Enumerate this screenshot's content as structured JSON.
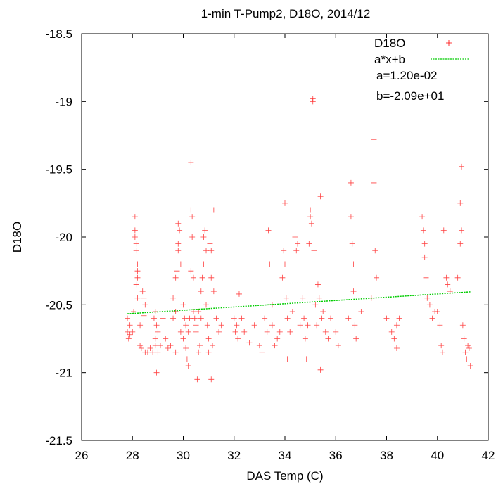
{
  "chart_data": {
    "type": "scatter",
    "title": "1-min T-Pump2, D18O, 2014/12",
    "xlabel": "DAS Temp (C)",
    "ylabel": "D18O",
    "xlim": [
      26,
      42
    ],
    "ylim": [
      -21.5,
      -18.5
    ],
    "x_ticks": [
      "26",
      "28",
      "30",
      "32",
      "34",
      "36",
      "38",
      "40",
      "42"
    ],
    "y_ticks": [
      "-18.5",
      "-19",
      "-19.5",
      "-20",
      "-20.5",
      "-21",
      "-21.5"
    ],
    "grid": false,
    "legend_position": "top-right",
    "series": [
      {
        "name": "D18O",
        "marker": "+",
        "color": "#ff0000",
        "points": [
          [
            27.8,
            -20.6
          ],
          [
            27.8,
            -20.7
          ],
          [
            27.85,
            -20.75
          ],
          [
            27.9,
            -20.65
          ],
          [
            27.9,
            -20.72
          ],
          [
            28.0,
            -20.7
          ],
          [
            28.05,
            -20.55
          ],
          [
            28.1,
            -19.85
          ],
          [
            28.1,
            -19.95
          ],
          [
            28.1,
            -20.0
          ],
          [
            28.15,
            -20.05
          ],
          [
            28.15,
            -20.1
          ],
          [
            28.2,
            -20.2
          ],
          [
            28.2,
            -20.25
          ],
          [
            28.2,
            -20.3
          ],
          [
            28.15,
            -20.35
          ],
          [
            28.2,
            -20.45
          ],
          [
            28.3,
            -20.65
          ],
          [
            28.3,
            -20.8
          ],
          [
            28.35,
            -20.82
          ],
          [
            28.4,
            -20.4
          ],
          [
            28.45,
            -20.45
          ],
          [
            28.5,
            -20.5
          ],
          [
            28.45,
            -20.58
          ],
          [
            28.5,
            -20.85
          ],
          [
            28.6,
            -20.85
          ],
          [
            28.7,
            -20.82
          ],
          [
            28.8,
            -20.85
          ],
          [
            28.9,
            -20.8
          ],
          [
            28.85,
            -20.6
          ],
          [
            28.9,
            -20.55
          ],
          [
            28.95,
            -20.65
          ],
          [
            29.0,
            -20.7
          ],
          [
            28.9,
            -20.75
          ],
          [
            28.95,
            -21.0
          ],
          [
            29.0,
            -20.85
          ],
          [
            29.1,
            -20.8
          ],
          [
            29.2,
            -20.6
          ],
          [
            29.3,
            -20.75
          ],
          [
            29.4,
            -20.82
          ],
          [
            29.5,
            -20.8
          ],
          [
            29.6,
            -20.6
          ],
          [
            29.7,
            -20.85
          ],
          [
            29.7,
            -20.55
          ],
          [
            29.6,
            -20.45
          ],
          [
            29.7,
            -20.3
          ],
          [
            29.75,
            -20.25
          ],
          [
            29.8,
            -20.1
          ],
          [
            29.8,
            -19.9
          ],
          [
            29.85,
            -19.95
          ],
          [
            29.8,
            -20.05
          ],
          [
            29.9,
            -20.2
          ],
          [
            29.9,
            -20.7
          ],
          [
            30.0,
            -20.5
          ],
          [
            30.05,
            -20.6
          ],
          [
            30.0,
            -20.75
          ],
          [
            30.1,
            -20.82
          ],
          [
            30.1,
            -20.65
          ],
          [
            30.15,
            -20.9
          ],
          [
            30.2,
            -20.95
          ],
          [
            30.2,
            -20.7
          ],
          [
            30.25,
            -20.6
          ],
          [
            30.3,
            -19.45
          ],
          [
            30.3,
            -19.8
          ],
          [
            30.35,
            -19.85
          ],
          [
            30.35,
            -20.0
          ],
          [
            30.3,
            -20.25
          ],
          [
            30.4,
            -20.3
          ],
          [
            30.4,
            -20.55
          ],
          [
            30.45,
            -20.6
          ],
          [
            30.5,
            -20.65
          ],
          [
            30.5,
            -20.7
          ],
          [
            30.55,
            -21.05
          ],
          [
            30.6,
            -20.55
          ],
          [
            30.6,
            -20.85
          ],
          [
            30.65,
            -20.8
          ],
          [
            30.7,
            -20.6
          ],
          [
            30.7,
            -20.4
          ],
          [
            30.75,
            -20.3
          ],
          [
            30.8,
            -20.2
          ],
          [
            30.8,
            -20.0
          ],
          [
            30.85,
            -19.95
          ],
          [
            30.9,
            -20.1
          ],
          [
            30.9,
            -20.5
          ],
          [
            30.95,
            -20.65
          ],
          [
            31.0,
            -20.75
          ],
          [
            31.0,
            -20.85
          ],
          [
            31.05,
            -20.05
          ],
          [
            31.1,
            -20.1
          ],
          [
            31.1,
            -20.3
          ],
          [
            31.1,
            -21.05
          ],
          [
            31.15,
            -20.8
          ],
          [
            31.2,
            -19.8
          ],
          [
            31.2,
            -20.4
          ],
          [
            31.3,
            -20.6
          ],
          [
            31.4,
            -20.7
          ],
          [
            31.5,
            -20.65
          ],
          [
            32.0,
            -20.6
          ],
          [
            32.05,
            -20.7
          ],
          [
            32.1,
            -20.65
          ],
          [
            32.15,
            -20.75
          ],
          [
            32.2,
            -20.42
          ],
          [
            32.3,
            -20.6
          ],
          [
            32.4,
            -20.7
          ],
          [
            32.6,
            -20.78
          ],
          [
            32.8,
            -20.65
          ],
          [
            33.0,
            -20.8
          ],
          [
            33.1,
            -20.85
          ],
          [
            33.2,
            -20.6
          ],
          [
            33.3,
            -20.7
          ],
          [
            33.35,
            -19.95
          ],
          [
            33.4,
            -20.2
          ],
          [
            33.5,
            -20.5
          ],
          [
            33.5,
            -20.65
          ],
          [
            33.6,
            -20.8
          ],
          [
            33.7,
            -20.75
          ],
          [
            33.8,
            -20.7
          ],
          [
            33.9,
            -20.3
          ],
          [
            33.95,
            -20.1
          ],
          [
            34.0,
            -19.75
          ],
          [
            34.0,
            -20.2
          ],
          [
            34.05,
            -20.45
          ],
          [
            34.1,
            -20.6
          ],
          [
            34.1,
            -20.9
          ],
          [
            34.2,
            -20.7
          ],
          [
            34.3,
            -20.55
          ],
          [
            34.4,
            -20.0
          ],
          [
            34.45,
            -20.1
          ],
          [
            34.5,
            -20.05
          ],
          [
            34.6,
            -20.65
          ],
          [
            34.7,
            -20.45
          ],
          [
            34.75,
            -20.6
          ],
          [
            34.8,
            -20.75
          ],
          [
            34.85,
            -20.9
          ],
          [
            34.9,
            -20.65
          ],
          [
            34.95,
            -20.05
          ],
          [
            35.0,
            -19.8
          ],
          [
            35.0,
            -19.85
          ],
          [
            35.05,
            -19.9
          ],
          [
            35.1,
            -18.98
          ],
          [
            35.1,
            -19.0
          ],
          [
            35.15,
            -20.1
          ],
          [
            35.2,
            -20.5
          ],
          [
            35.25,
            -20.65
          ],
          [
            35.3,
            -20.35
          ],
          [
            35.35,
            -20.45
          ],
          [
            35.4,
            -19.7
          ],
          [
            35.45,
            -20.6
          ],
          [
            35.5,
            -20.55
          ],
          [
            35.4,
            -20.98
          ],
          [
            35.6,
            -20.7
          ],
          [
            35.7,
            -20.75
          ],
          [
            35.8,
            -20.6
          ],
          [
            36.0,
            -20.7
          ],
          [
            36.1,
            -20.8
          ],
          [
            36.5,
            -20.6
          ],
          [
            36.6,
            -19.6
          ],
          [
            36.6,
            -19.85
          ],
          [
            36.65,
            -20.05
          ],
          [
            36.7,
            -20.2
          ],
          [
            36.7,
            -20.4
          ],
          [
            36.75,
            -20.65
          ],
          [
            36.8,
            -20.75
          ],
          [
            37.0,
            -20.55
          ],
          [
            37.4,
            -20.45
          ],
          [
            37.5,
            -19.28
          ],
          [
            37.5,
            -19.6
          ],
          [
            37.55,
            -20.1
          ],
          [
            37.6,
            -20.3
          ],
          [
            38.0,
            -20.6
          ],
          [
            38.2,
            -20.7
          ],
          [
            38.3,
            -20.75
          ],
          [
            38.4,
            -20.82
          ],
          [
            38.4,
            -20.65
          ],
          [
            38.5,
            -20.6
          ],
          [
            39.4,
            -19.85
          ],
          [
            39.45,
            -19.95
          ],
          [
            39.5,
            -20.05
          ],
          [
            39.5,
            -20.15
          ],
          [
            39.55,
            -20.3
          ],
          [
            39.6,
            -20.45
          ],
          [
            39.7,
            -20.5
          ],
          [
            39.8,
            -20.6
          ],
          [
            39.9,
            -20.55
          ],
          [
            40.0,
            -20.55
          ],
          [
            40.1,
            -20.65
          ],
          [
            40.15,
            -20.8
          ],
          [
            40.2,
            -20.85
          ],
          [
            40.25,
            -19.95
          ],
          [
            40.3,
            -20.2
          ],
          [
            40.35,
            -20.3
          ],
          [
            40.4,
            -20.35
          ],
          [
            40.5,
            -20.4
          ],
          [
            40.8,
            -20.3
          ],
          [
            40.85,
            -20.2
          ],
          [
            40.9,
            -20.05
          ],
          [
            40.95,
            -19.95
          ],
          [
            40.9,
            -19.75
          ],
          [
            40.95,
            -19.48
          ],
          [
            41.0,
            -20.65
          ],
          [
            41.05,
            -20.75
          ],
          [
            41.1,
            -20.85
          ],
          [
            41.15,
            -20.9
          ],
          [
            41.2,
            -20.8
          ],
          [
            41.3,
            -20.95
          ],
          [
            41.25,
            -20.82
          ]
        ]
      },
      {
        "name": "a*x+b",
        "style": "dashed",
        "color": "#00cc00",
        "a": 0.012,
        "b": -20.9,
        "x_range": [
          27.8,
          41.3
        ]
      }
    ],
    "annotations": [
      "a=1.20e-02",
      "b=-2.09e+01"
    ]
  }
}
